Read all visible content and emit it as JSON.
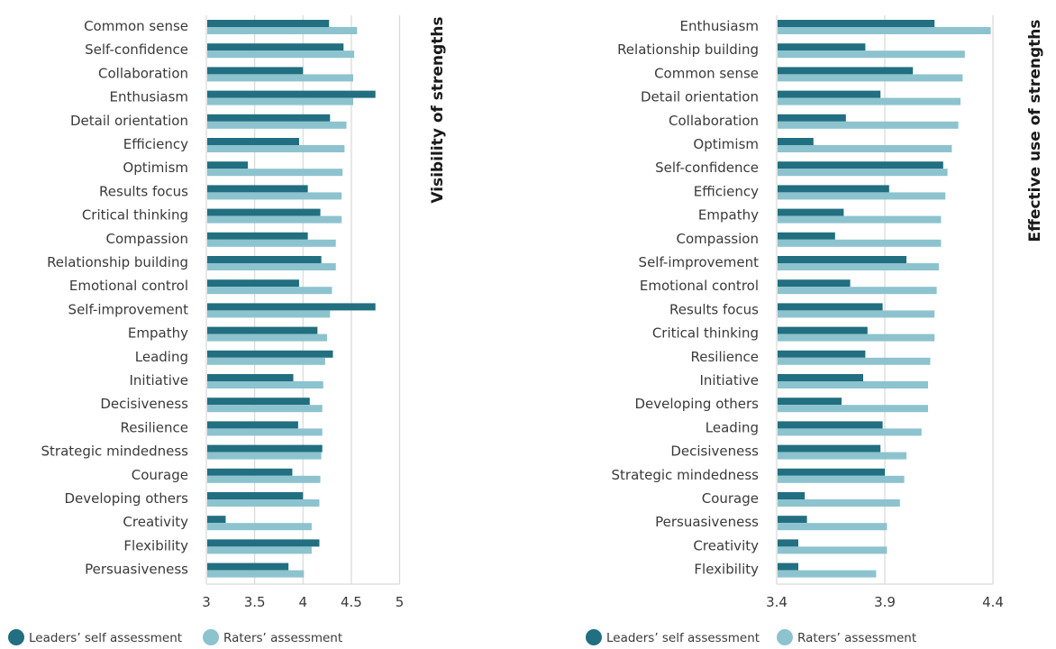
{
  "colors": {
    "self": "#216f80",
    "raters": "#8cc3ce",
    "grid": "#d9d9d9"
  },
  "chart_data": [
    {
      "type": "bar",
      "orientation": "horizontal",
      "title": "Visibility of strengths",
      "xlim": [
        3,
        5
      ],
      "ticks": [
        "3",
        "3.5",
        "4",
        "4.5",
        "5"
      ],
      "tick_values": [
        3,
        3.5,
        4,
        4.5,
        5
      ],
      "grid": true,
      "legend": "bottom-left",
      "categories": [
        "Common sense",
        "Self-confidence",
        "Collaboration",
        "Enthusiasm",
        "Detail orientation",
        "Efficiency",
        "Optimism",
        "Results focus",
        "Critical thinking",
        "Compassion",
        "Relationship building",
        "Emotional control",
        "Self-improvement",
        "Empathy",
        "Leading",
        "Initiative",
        "Decisiveness",
        "Resilience",
        "Strategic mindedness",
        "Courage",
        "Developing others",
        "Creativity",
        "Flexibility",
        "Persuasiveness"
      ],
      "series": [
        {
          "name": "Leaders’ self assessment",
          "values": [
            4.27,
            4.42,
            4.0,
            4.75,
            4.28,
            3.96,
            3.43,
            4.05,
            4.18,
            4.05,
            4.19,
            3.96,
            4.75,
            4.15,
            4.31,
            3.9,
            4.07,
            3.95,
            4.2,
            3.89,
            4.0,
            3.2,
            4.17,
            3.85
          ]
        },
        {
          "name": "Raters’ assessment",
          "values": [
            4.56,
            4.53,
            4.52,
            4.52,
            4.45,
            4.43,
            4.41,
            4.4,
            4.4,
            4.34,
            4.34,
            4.3,
            4.28,
            4.25,
            4.23,
            4.21,
            4.2,
            4.2,
            4.19,
            4.18,
            4.17,
            4.09,
            4.09,
            4.01
          ]
        }
      ]
    },
    {
      "type": "bar",
      "orientation": "horizontal",
      "title": "Effective use of strengths",
      "xlim": [
        3.4,
        4.4
      ],
      "ticks": [
        "3.4",
        "3.9",
        "4.4"
      ],
      "tick_values": [
        3.4,
        3.9,
        4.4
      ],
      "grid": true,
      "legend": "bottom-left",
      "categories": [
        "Enthusiasm",
        "Relationship building",
        "Common sense",
        "Detail orientation",
        "Collaboration",
        "Optimism",
        "Self-confidence",
        "Efficiency",
        "Empathy",
        "Compassion",
        "Self-improvement",
        "Emotional control",
        "Results focus",
        "Critical thinking",
        "Resilience",
        "Initiative",
        "Developing others",
        "Leading",
        "Decisiveness",
        "Strategic mindedness",
        "Courage",
        "Persuasiveness",
        "Creativity",
        "Flexibility"
      ],
      "series": [
        {
          "name": "Leaders’ self assessment",
          "values": [
            4.13,
            3.81,
            4.03,
            3.88,
            3.72,
            3.57,
            4.17,
            3.92,
            3.71,
            3.67,
            4.0,
            3.74,
            3.89,
            3.82,
            3.81,
            3.8,
            3.7,
            3.89,
            3.88,
            3.9,
            3.53,
            3.54,
            3.5,
            3.5
          ]
        },
        {
          "name": "Raters’ assessment",
          "values": [
            4.39,
            4.27,
            4.26,
            4.25,
            4.24,
            4.21,
            4.19,
            4.18,
            4.16,
            4.16,
            4.15,
            4.14,
            4.13,
            4.13,
            4.11,
            4.1,
            4.1,
            4.07,
            4.0,
            3.99,
            3.97,
            3.91,
            3.91,
            3.86
          ]
        }
      ]
    }
  ],
  "legend": {
    "self_label": "Leaders’ self assessment",
    "raters_label": "Raters’ assessment"
  }
}
